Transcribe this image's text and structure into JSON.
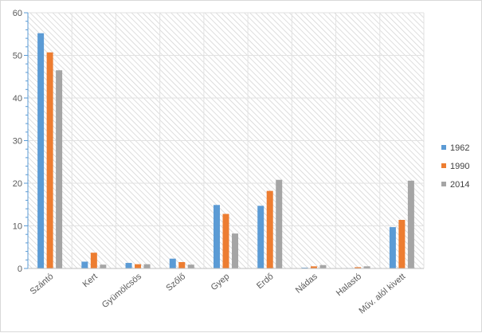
{
  "chart_data": {
    "type": "bar",
    "categories": [
      "Szántó",
      "Kert",
      "Gyümölcsös",
      "Szőlő",
      "Gyep",
      "Erdő",
      "Nádas",
      "Halastó",
      "Műv. alól kivett"
    ],
    "series": [
      {
        "name": "1962",
        "color": "#5b9bd5",
        "values": [
          55.2,
          1.6,
          1.3,
          2.3,
          14.9,
          14.7,
          0.2,
          0.1,
          9.7
        ]
      },
      {
        "name": "1990",
        "color": "#ed7d31",
        "values": [
          50.7,
          3.7,
          1.0,
          1.5,
          12.8,
          18.2,
          0.5,
          0.3,
          11.4
        ]
      },
      {
        "name": "2014",
        "color": "#a5a5a5",
        "values": [
          46.5,
          0.9,
          1.0,
          0.9,
          8.2,
          20.8,
          0.8,
          0.5,
          20.6
        ]
      }
    ],
    "yticks": [
      "0",
      "10",
      "20",
      "30",
      "40",
      "50",
      "60"
    ],
    "ylim": [
      0,
      60
    ],
    "title": "",
    "xlabel": "",
    "ylabel": "",
    "grid": true,
    "legend_position": "right"
  }
}
